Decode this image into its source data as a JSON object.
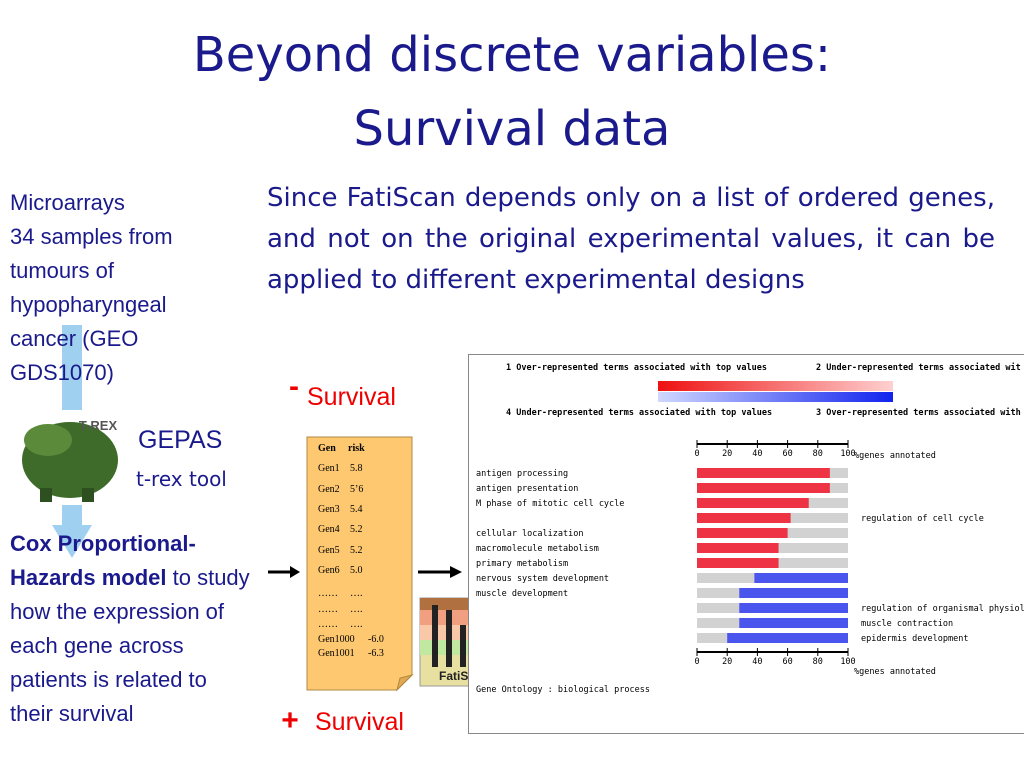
{
  "title": [
    "Beyond discrete variables:",
    "Survival data"
  ],
  "intro": "Since FatiScan depends only on a list of ordered genes, and not on the original experimental values, it can be applied to different experimental designs",
  "sidebar": {
    "heading": "Microarrays",
    "text": "34 samples from tumours of hypopharyngeal cancer (GEO GDS1070)",
    "tool_name": "GEPAS",
    "tool_sub": "t-rex tool",
    "model_bold": "Cox Proportional-Hazards model",
    "model_rest": "to study how the expression of each gene across patients is related to their survival"
  },
  "labels": {
    "minus": "-",
    "survival_top": "Survival",
    "plus": "+",
    "survival_bottom": "Survival"
  },
  "trex_logo": "T-REX",
  "fatiscan_logo": "FatiScan",
  "note": {
    "header": [
      "Gen",
      "risk"
    ],
    "rows": [
      [
        "Gen1",
        "5.8"
      ],
      [
        "Gen2",
        "5’6"
      ],
      [
        "Gen3",
        "5.4"
      ],
      [
        "Gen4",
        "5.2"
      ],
      [
        "Gen5",
        "5.2"
      ],
      [
        "Gen6",
        "5.0"
      ],
      [
        "……",
        "…."
      ],
      [
        "……",
        "…."
      ],
      [
        "……",
        "…."
      ],
      [
        "Gen1000",
        "-6.0"
      ],
      [
        "Gen1001",
        "-6.3"
      ]
    ]
  },
  "chart_data": {
    "type": "bar",
    "orientation": "horizontal",
    "legend": [
      "1 Over-represented terms associated with top values",
      "2 Under-represented terms associated wit",
      "4 Under-represented terms associated with top values",
      "3 Over-represented terms associated with"
    ],
    "categories": [
      "antigen processing",
      "antigen presentation",
      "M phase of mitotic cell cycle",
      "regulation of cell cycle",
      "cellular localization",
      "macromolecule metabolism",
      "primary metabolism",
      "nervous system development",
      "muscle development",
      "regulation of organismal physiologic",
      "muscle contraction",
      "epidermis development"
    ],
    "label_side": [
      "left",
      "left",
      "left",
      "right",
      "left",
      "left",
      "left",
      "left",
      "left",
      "right",
      "right",
      "right"
    ],
    "series": [
      {
        "color": "#ee3344",
        "anchor": "start",
        "values": [
          88,
          88,
          74,
          62,
          60,
          54,
          54,
          null,
          null,
          null,
          null,
          null
        ]
      },
      {
        "color": "#4a55ee",
        "anchor": "end",
        "values": [
          null,
          null,
          null,
          null,
          null,
          null,
          null,
          62,
          72,
          72,
          72,
          80
        ]
      }
    ],
    "remainder_color": "#d2d2d2",
    "xlim": [
      0,
      100
    ],
    "xticks": [
      0,
      20,
      40,
      60,
      80,
      100
    ],
    "xlabel": "%genes annotated",
    "footer": "Gene Ontology : biological process"
  }
}
